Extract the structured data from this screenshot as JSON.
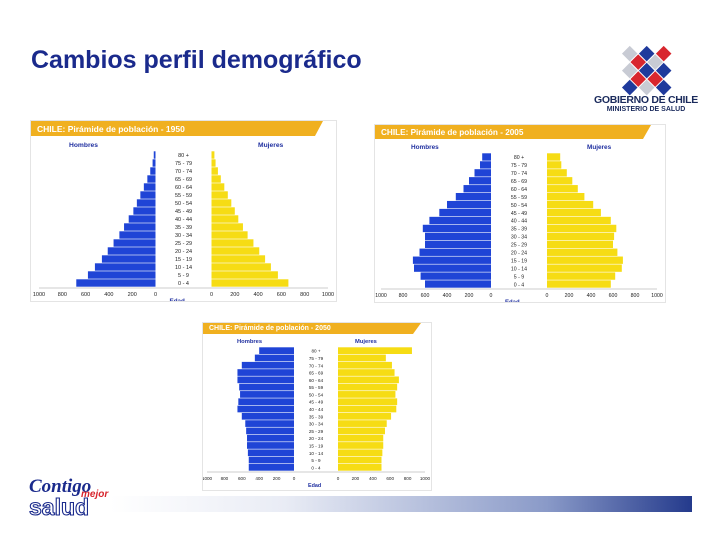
{
  "slide": {
    "title": "Cambios perfil demográfico"
  },
  "header_logo": {
    "line1": "GOBIERNO DE CHILE",
    "line2": "MINISTERIO DE SALUD"
  },
  "footer_logo": {
    "word1": "Contigo",
    "word2": "mejor",
    "word3": "salud"
  },
  "colors": {
    "men": "#1f44d6",
    "women": "#f6dc14",
    "banner": "#f0b020",
    "title": "#1a2a8c"
  },
  "chart_data": [
    {
      "type": "bar",
      "orientation": "horizontal-population-pyramid",
      "title": "CHILE: Pirámide de población - 1950",
      "left_label": "Hombres",
      "right_label": "Mujeres",
      "xlabel": "Edad",
      "ticks_left": [
        "1000",
        "800",
        "600",
        "400",
        "200",
        "0"
      ],
      "ticks_right": [
        "0",
        "200",
        "400",
        "600",
        "800",
        "1000"
      ],
      "xlim": [
        -1000,
        1000
      ],
      "categories": [
        "0-4",
        "5-9",
        "10-14",
        "15-19",
        "20-24",
        "25-29",
        "30-34",
        "35-39",
        "40-44",
        "45-49",
        "50-54",
        "55-59",
        "60-64",
        "65-69",
        "70-74",
        "75-79",
        "80+"
      ],
      "category_labels": [
        "0 - 4",
        "5 - 9",
        "10 - 14",
        "15 - 19",
        "20 - 24",
        "25 - 29",
        "30 - 34",
        "35 - 39",
        "40 - 44",
        "45 - 49",
        "50 - 54",
        "55 - 59",
        "60 - 64",
        "65 - 69",
        "70 - 74",
        "75 - 79",
        "80 +"
      ],
      "series": [
        {
          "name": "Hombres",
          "values": [
            -680,
            -580,
            -520,
            -460,
            -410,
            -360,
            -310,
            -270,
            -230,
            -190,
            -160,
            -130,
            -100,
            -70,
            -45,
            -25,
            -15
          ]
        },
        {
          "name": "Mujeres",
          "values": [
            660,
            570,
            510,
            460,
            410,
            360,
            310,
            270,
            230,
            200,
            170,
            140,
            110,
            80,
            55,
            35,
            25
          ]
        }
      ]
    },
    {
      "type": "bar",
      "orientation": "horizontal-population-pyramid",
      "title": "CHILE: Pirámide de población - 2005",
      "left_label": "Hombres",
      "right_label": "Mujeres",
      "xlabel": "Edad",
      "ticks_left": [
        "1000",
        "800",
        "600",
        "400",
        "200",
        "0"
      ],
      "ticks_right": [
        "0",
        "200",
        "400",
        "600",
        "800",
        "1000"
      ],
      "xlim": [
        -1000,
        1000
      ],
      "categories": [
        "0-4",
        "5-9",
        "10-14",
        "15-19",
        "20-24",
        "25-29",
        "30-34",
        "35-39",
        "40-44",
        "45-49",
        "50-54",
        "55-59",
        "60-64",
        "65-69",
        "70-74",
        "75-79",
        "80+"
      ],
      "category_labels": [
        "0 - 4",
        "5 - 9",
        "10 - 14",
        "15 - 19",
        "20 - 24",
        "25 - 29",
        "30 - 34",
        "35 - 39",
        "40 - 44",
        "45 - 49",
        "50 - 54",
        "55 - 59",
        "60 - 64",
        "65 - 69",
        "70 - 74",
        "75 - 79",
        "80 +"
      ],
      "series": [
        {
          "name": "Hombres",
          "values": [
            -600,
            -640,
            -700,
            -710,
            -650,
            -600,
            -600,
            -620,
            -560,
            -470,
            -400,
            -320,
            -250,
            -200,
            -150,
            -100,
            -80
          ]
        },
        {
          "name": "Mujeres",
          "values": [
            580,
            620,
            680,
            690,
            640,
            600,
            610,
            630,
            580,
            490,
            420,
            340,
            280,
            230,
            180,
            130,
            120
          ]
        }
      ]
    },
    {
      "type": "bar",
      "orientation": "horizontal-population-pyramid",
      "title": "CHILE: Pirámide de población - 2050",
      "left_label": "Hombres",
      "right_label": "Mujeres",
      "xlabel": "Edad",
      "ticks_left": [
        "1000",
        "800",
        "600",
        "400",
        "200",
        "0"
      ],
      "ticks_right": [
        "0",
        "200",
        "400",
        "600",
        "800",
        "1000"
      ],
      "xlim": [
        -1000,
        1000
      ],
      "categories": [
        "0-4",
        "5-9",
        "10-14",
        "15-19",
        "20-24",
        "25-29",
        "30-34",
        "35-39",
        "40-44",
        "45-49",
        "50-54",
        "55-59",
        "60-64",
        "65-69",
        "70-74",
        "75-79",
        "80+"
      ],
      "category_labels": [
        "0 - 4",
        "5 - 9",
        "10 - 14",
        "15 - 19",
        "20 - 24",
        "25 - 29",
        "30 - 34",
        "35 - 39",
        "40 - 44",
        "45 - 49",
        "50 - 54",
        "55 - 59",
        "60 - 64",
        "65 - 69",
        "70 - 74",
        "75 - 79",
        "80 +"
      ],
      "series": [
        {
          "name": "Hombres",
          "values": [
            -520,
            -520,
            -530,
            -540,
            -540,
            -550,
            -560,
            -600,
            -650,
            -640,
            -620,
            -630,
            -650,
            -650,
            -600,
            -450,
            -400
          ]
        },
        {
          "name": "Mujeres",
          "values": [
            500,
            500,
            510,
            520,
            520,
            540,
            560,
            610,
            670,
            680,
            660,
            680,
            700,
            650,
            620,
            550,
            850
          ]
        }
      ]
    }
  ]
}
